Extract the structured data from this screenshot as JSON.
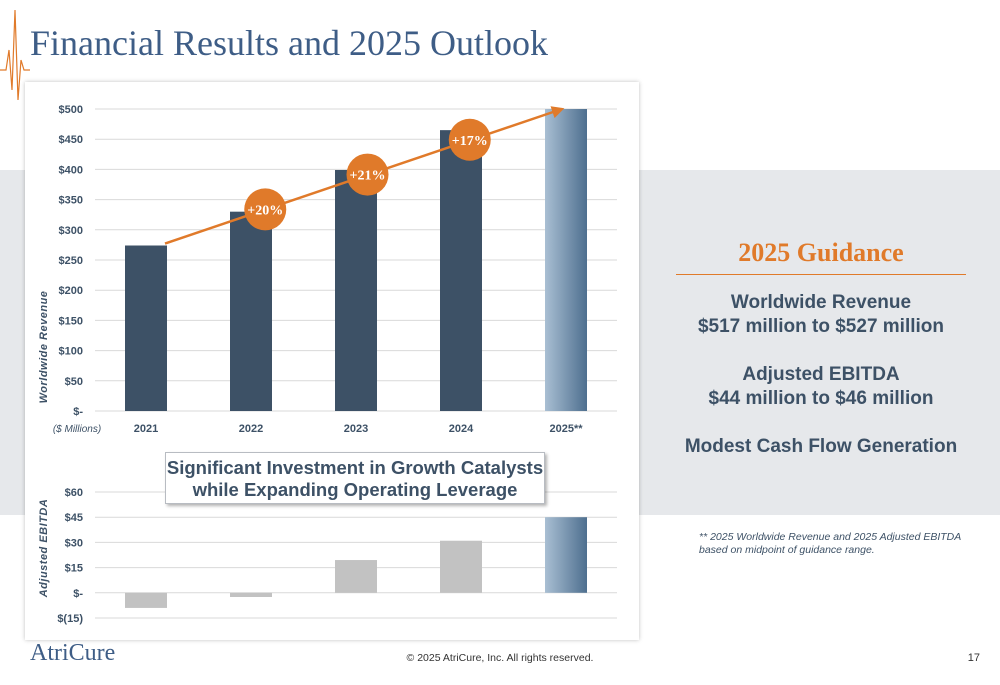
{
  "slide": {
    "title": "Financial Results and 2025 Outlook",
    "copyright": "© 2025 AtriCure, Inc. All rights reserved.",
    "page_number": "17",
    "logo_text": "AtriCure"
  },
  "callout": {
    "line1": "Significant Investment in Growth Catalysts",
    "line2": "while Expanding Operating Leverage"
  },
  "guidance": {
    "title": "2025 Guidance",
    "revenue_label": "Worldwide Revenue",
    "revenue_range": "$517 million to $527 million",
    "ebitda_label": "Adjusted EBITDA",
    "ebitda_range": "$44 million to $46 million",
    "cash_flow": "Modest Cash Flow Generation"
  },
  "footnote": "** 2025 Worldwide Revenue and 2025 Adjusted EBITDA based on midpoint of guidance range.",
  "colors": {
    "title_blue": "#3e5d86",
    "bar_navy": "#3d5166",
    "accent_orange": "#e07a2a",
    "ebitda_gray": "#c2c2c2",
    "forecast_gradient_start": "#a9bfd3",
    "forecast_gradient_end": "#4e6f8f"
  },
  "chart_data": [
    {
      "type": "bar",
      "ylabel": "Worldwide Revenue",
      "unit_note": "($ Millions)",
      "categories": [
        "2021",
        "2022",
        "2023",
        "2024",
        "2025**"
      ],
      "values": [
        274,
        330,
        399,
        465,
        522
      ],
      "ylim": [
        0,
        500
      ],
      "ticks": [
        0,
        50,
        100,
        150,
        200,
        250,
        300,
        350,
        400,
        450,
        500
      ],
      "tick_labels": [
        "$-",
        "$50",
        "$100",
        "$150",
        "$200",
        "$250",
        "$300",
        "$350",
        "$400",
        "$450",
        "$500"
      ],
      "growth_labels": [
        "+20%",
        "+21%",
        "+17%"
      ],
      "grid": true
    },
    {
      "type": "bar",
      "ylabel": "Adjusted EBITDA",
      "categories": [
        "2021",
        "2022",
        "2023",
        "2024",
        "2025**"
      ],
      "values": [
        -9,
        -2.5,
        19.5,
        31,
        45
      ],
      "ylim": [
        -15,
        60
      ],
      "ticks": [
        -15,
        0,
        15,
        30,
        45,
        60
      ],
      "tick_labels": [
        "$(15)",
        "$-",
        "$15",
        "$30",
        "$45",
        "$60"
      ],
      "grid": true
    }
  ]
}
